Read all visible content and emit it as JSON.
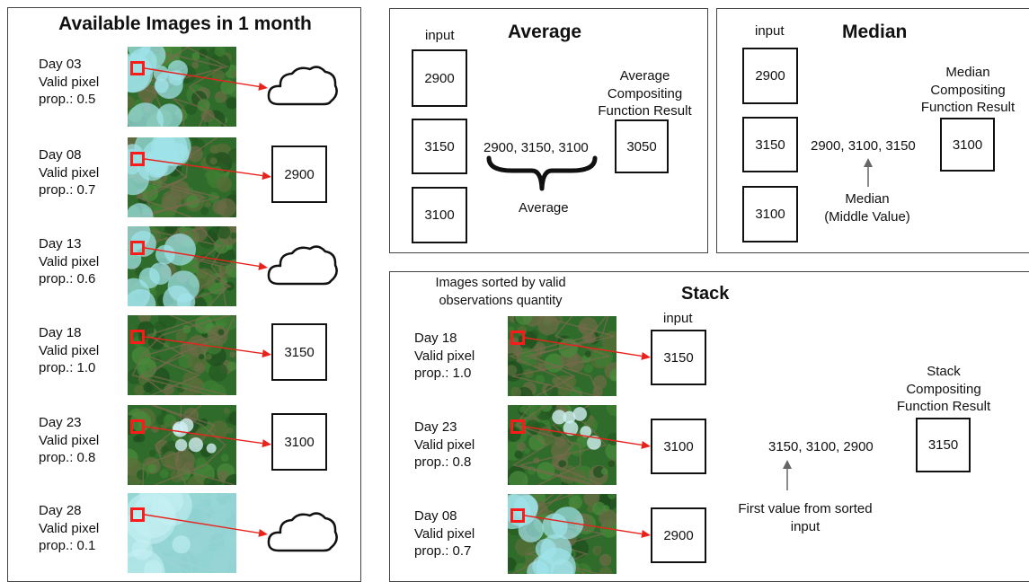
{
  "left_panel": {
    "title": "Available Images in 1 month",
    "entries": [
      {
        "day": "Day 03",
        "valid": "Valid pixel",
        "prop": "prop.: 0.5",
        "kind": "partly-cloudy",
        "result": "cloud"
      },
      {
        "day": "Day 08",
        "valid": "Valid pixel",
        "prop": "prop.: 0.7",
        "kind": "partly-cloudy",
        "result": "2900"
      },
      {
        "day": "Day 13",
        "valid": "Valid pixel",
        "prop": "prop.: 0.6",
        "kind": "partly-cloudy",
        "result": "cloud"
      },
      {
        "day": "Day 18",
        "valid": "Valid pixel",
        "prop": "prop.: 1.0",
        "kind": "clear",
        "result": "3150"
      },
      {
        "day": "Day 23",
        "valid": "Valid pixel",
        "prop": "prop.: 0.8",
        "kind": "mostly-clear",
        "result": "3100"
      },
      {
        "day": "Day 28",
        "valid": "Valid pixel",
        "prop": "prop.: 0.1",
        "kind": "cloudy",
        "result": "cloud"
      }
    ]
  },
  "average": {
    "title": "Average",
    "input_label": "input",
    "inputs": [
      "2900",
      "3150",
      "3100"
    ],
    "sequence": "2900, 3150, 3100",
    "brace_label": "Average",
    "result_caption": [
      "Average",
      "Compositing",
      "Function Result"
    ],
    "result": "3050"
  },
  "median": {
    "title": "Median",
    "input_label": "input",
    "inputs": [
      "2900",
      "3150",
      "3100"
    ],
    "sequence": "2900, 3100, 3150",
    "note": [
      "Median",
      "(Middle Value)"
    ],
    "result_caption": [
      "Median",
      "Compositing",
      "Function Result"
    ],
    "result": "3100"
  },
  "stack": {
    "title": "Stack",
    "sorted_caption": [
      "Images sorted by valid",
      "observations quantity"
    ],
    "input_label": "input",
    "entries": [
      {
        "day": "Day 18",
        "valid": "Valid pixel",
        "prop": "prop.: 1.0",
        "kind": "clear",
        "value": "3150"
      },
      {
        "day": "Day 23",
        "valid": "Valid pixel",
        "prop": "prop.: 0.8",
        "kind": "mostly-clear",
        "value": "3100"
      },
      {
        "day": "Day 08",
        "valid": "Valid pixel",
        "prop": "prop.: 0.7",
        "kind": "partly-cloudy",
        "value": "2900"
      }
    ],
    "sequence": "3150, 3100, 2900",
    "note": [
      "First value from sorted",
      "input"
    ],
    "result_caption": [
      "Stack",
      "Compositing",
      "Function Result"
    ],
    "result": "3150"
  },
  "colors": {
    "arrow": "#e8231d",
    "marker": "#ff1a1a",
    "border": "#111111",
    "vegetation": "#2f6b2a",
    "cloud": "#9fe3ea"
  },
  "icons": [
    "cloud-icon",
    "up-arrow-icon",
    "curly-brace-icon"
  ]
}
